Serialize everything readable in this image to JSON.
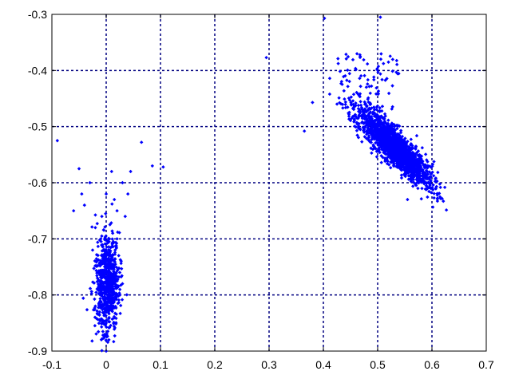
{
  "chart_data": {
    "type": "scatter",
    "title": "",
    "xlabel": "",
    "ylabel": "",
    "xlim": [
      -0.1,
      0.7
    ],
    "ylim": [
      -0.9,
      -0.3
    ],
    "x_ticks": [
      "-0.1",
      "0",
      "0.1",
      "0.2",
      "0.3",
      "0.4",
      "0.5",
      "0.6",
      "0.7"
    ],
    "y_ticks": [
      "-0.3",
      "-0.4",
      "-0.5",
      "-0.6",
      "-0.7",
      "-0.8",
      "-0.9"
    ],
    "grid": true,
    "series_color": "#0000ff",
    "grid_color": "#000080",
    "series": [
      {
        "marker": "diamond",
        "points": [
          [
            -0.09,
            -0.525
          ],
          [
            -0.05,
            -0.575
          ],
          [
            -0.045,
            -0.62
          ],
          [
            -0.06,
            -0.65
          ],
          [
            -0.04,
            -0.64
          ],
          [
            0.065,
            -0.528
          ],
          [
            0.085,
            -0.57
          ],
          [
            0.105,
            -0.572
          ],
          [
            0.295,
            -0.377
          ],
          [
            0.365,
            -0.508
          ],
          [
            0.402,
            -0.307
          ],
          [
            0.505,
            -0.305
          ],
          [
            0.555,
            -0.63
          ],
          [
            0.38,
            -0.457
          ],
          [
            0.0,
            -0.62
          ],
          [
            0.01,
            -0.58
          ],
          [
            0.03,
            -0.6
          ],
          [
            0.02,
            -0.65
          ],
          [
            -0.02,
            -0.68
          ],
          [
            -0.01,
            -0.7
          ],
          [
            0.005,
            -0.72
          ],
          [
            0.0,
            -0.75
          ],
          [
            -0.005,
            -0.78
          ],
          [
            0.002,
            -0.8
          ],
          [
            0.01,
            -0.82
          ],
          [
            -0.015,
            -0.76
          ],
          [
            0.015,
            -0.74
          ],
          [
            0.0,
            -0.85
          ],
          [
            0.005,
            -0.88
          ],
          [
            0.02,
            -0.7
          ],
          [
            -0.025,
            -0.72
          ],
          [
            0.025,
            -0.76
          ],
          [
            0.035,
            -0.66
          ],
          [
            0.015,
            -0.63
          ],
          [
            0.0,
            -0.9
          ],
          [
            -0.02,
            -0.82
          ],
          [
            0.03,
            -0.78
          ],
          [
            0.012,
            -0.69
          ],
          [
            -0.008,
            -0.66
          ],
          [
            0.045,
            -0.58
          ],
          [
            0.04,
            -0.62
          ],
          [
            -0.03,
            -0.6
          ]
        ]
      }
    ]
  }
}
